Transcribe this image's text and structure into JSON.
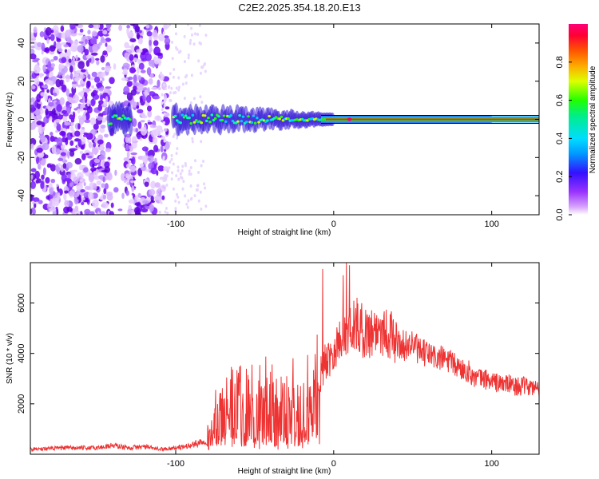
{
  "chart_data": [
    {
      "type": "heatmap",
      "title": "C2E2.2025.354.18.20.E13",
      "xlabel": "Height of straight line (km)",
      "ylabel": "Frequency (Hz)",
      "xlim": [
        -192,
        130
      ],
      "ylim": [
        -50,
        50
      ],
      "xticks": [
        -100,
        0,
        100
      ],
      "yticks": [
        -40,
        -20,
        0,
        20,
        40
      ],
      "colorbar": {
        "label": "Normalized spectral amplitude",
        "range": [
          0,
          1
        ],
        "ticks": [
          0.0,
          0.2,
          0.4,
          0.6,
          0.8
        ],
        "colors": [
          "#ffffff",
          "#cc88ff",
          "#7700ee",
          "#2222ff",
          "#00ccff",
          "#00ff44",
          "#ffee00",
          "#ff7700",
          "#ff0000",
          "#ff0066"
        ]
      },
      "features": [
        {
          "name": "broadband noise",
          "x_range": [
            -192,
            -105
          ],
          "freq_range": [
            -50,
            50
          ]
        },
        {
          "name": "narrowband signal",
          "x_range": [
            -142,
            130
          ],
          "freq_center": 0,
          "peak_x": 10
        }
      ]
    },
    {
      "type": "line",
      "xlabel": "Height of straight line (km)",
      "ylabel": "SNR (10 * v/v)",
      "xlim": [
        -192,
        130
      ],
      "ylim": [
        0,
        7600
      ],
      "xticks": [
        -100,
        0,
        100
      ],
      "yticks": [
        2000,
        4000,
        6000
      ],
      "series": [
        {
          "name": "SNR",
          "color": "#ee3333",
          "x": [
            -192,
            -170,
            -150,
            -140,
            -130,
            -120,
            -110,
            -100,
            -90,
            -80,
            -75,
            -70,
            -65,
            -60,
            -55,
            -50,
            -45,
            -40,
            -35,
            -30,
            -25,
            -20,
            -15,
            -12,
            -10,
            -8,
            -5,
            0,
            5,
            8,
            10,
            15,
            20,
            25,
            30,
            35,
            40,
            45,
            50,
            55,
            60,
            65,
            70,
            75,
            80,
            85,
            90,
            95,
            100,
            105,
            110,
            115,
            120,
            125,
            130
          ],
          "y": [
            200,
            250,
            250,
            350,
            250,
            300,
            200,
            250,
            350,
            600,
            1000,
            1500,
            1800,
            2000,
            1700,
            1600,
            1650,
            1500,
            1600,
            1700,
            1500,
            1500,
            1700,
            2200,
            2600,
            3200,
            3700,
            4200,
            4500,
            4900,
            5200,
            5100,
            4800,
            4900,
            5000,
            4800,
            4400,
            4300,
            4400,
            4000,
            4000,
            3800,
            3800,
            3600,
            3400,
            3300,
            3000,
            3000,
            2900,
            2800,
            2800,
            2700,
            2700,
            2650,
            2600
          ]
        }
      ]
    }
  ]
}
